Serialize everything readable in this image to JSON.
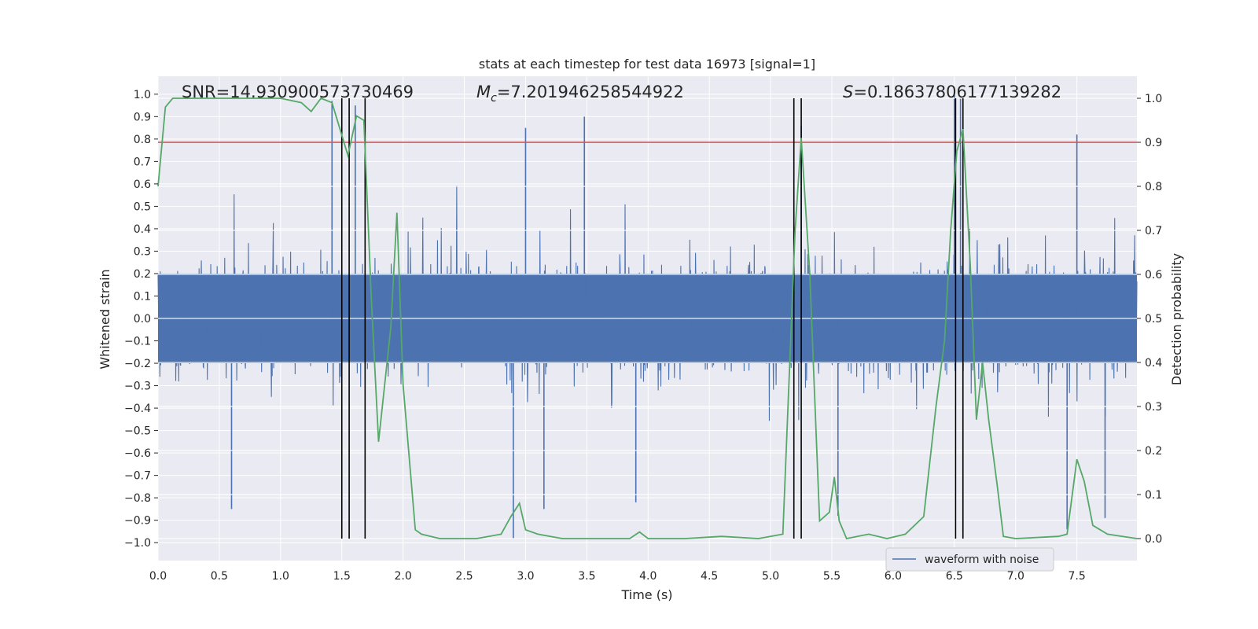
{
  "chart_data": {
    "type": "line",
    "title": "stats at each timestep for test data 16973 [signal=1]",
    "xlabel": "Time (s)",
    "ylabel": "Whitened strain",
    "y2label": "Detection probability",
    "xlim": [
      0.0,
      7.99
    ],
    "ylim": [
      -1.08,
      1.08
    ],
    "y2lim": [
      -0.05,
      1.05
    ],
    "x_ticks": [
      "0.0",
      "0.5",
      "1.0",
      "1.5",
      "2.0",
      "2.5",
      "3.0",
      "3.5",
      "4.0",
      "4.5",
      "5.0",
      "5.5",
      "6.0",
      "6.5",
      "7.0",
      "7.5"
    ],
    "y_ticks": [
      "1.0",
      "0.9",
      "0.8",
      "0.7",
      "0.6",
      "0.5",
      "0.4",
      "0.3",
      "0.2",
      "0.1",
      "0.0",
      "−0.1",
      "−0.2",
      "−0.3",
      "−0.4",
      "−0.5",
      "−0.6",
      "−0.7",
      "−0.8",
      "−0.9",
      "−1.0"
    ],
    "y2_ticks": [
      "1.0",
      "0.9",
      "0.8",
      "0.7",
      "0.6",
      "0.5",
      "0.4",
      "0.3",
      "0.2",
      "0.1",
      "0.0"
    ],
    "annotations": {
      "snr": "SNR=14.930900573730469",
      "mc_symbol": "M",
      "mc_sub": "c",
      "mc_value": "=7.201946258544922",
      "s_symbol": "S",
      "s_value": "=0.18637806177139282"
    },
    "legend": {
      "label": "waveform with noise",
      "position": "lower-right"
    },
    "threshold": {
      "value": 0.9,
      "axis": "y2",
      "color": "#c44e52"
    },
    "vertical_markers": [
      1.5,
      1.56,
      1.69,
      5.19,
      5.25,
      6.51,
      6.57
    ],
    "series": [
      {
        "name": "waveform with noise",
        "axis": "y",
        "color": "#4c72b0",
        "kind": "noise-envelope",
        "duration": 7.99,
        "peaks": [
          {
            "t": 1.42,
            "v": 0.97
          },
          {
            "t": 1.61,
            "v": 0.95
          },
          {
            "t": 3.48,
            "v": 0.9
          },
          {
            "t": 3.0,
            "v": 0.85
          },
          {
            "t": 5.25,
            "v": 0.86
          },
          {
            "t": 6.5,
            "v": 1.0
          },
          {
            "t": 6.55,
            "v": 0.98
          },
          {
            "t": 7.5,
            "v": 0.82
          },
          {
            "t": 2.9,
            "v": -0.98
          },
          {
            "t": 6.57,
            "v": -0.95
          },
          {
            "t": 7.42,
            "v": -0.94
          },
          {
            "t": 0.6,
            "v": -0.85
          },
          {
            "t": 3.15,
            "v": -0.85
          },
          {
            "t": 5.55,
            "v": -0.88
          },
          {
            "t": 7.73,
            "v": -0.89
          },
          {
            "t": 3.9,
            "v": -0.82
          }
        ]
      },
      {
        "name": "detection probability",
        "axis": "y2",
        "color": "#55a868",
        "points": [
          [
            0.0,
            0.8
          ],
          [
            0.06,
            0.98
          ],
          [
            0.12,
            1.0
          ],
          [
            0.5,
            1.0
          ],
          [
            0.75,
            1.0
          ],
          [
            1.0,
            1.0
          ],
          [
            1.17,
            0.99
          ],
          [
            1.25,
            0.97
          ],
          [
            1.33,
            1.0
          ],
          [
            1.42,
            0.99
          ],
          [
            1.55,
            0.87
          ],
          [
            1.62,
            0.96
          ],
          [
            1.68,
            0.95
          ],
          [
            1.74,
            0.55
          ],
          [
            1.8,
            0.22
          ],
          [
            1.9,
            0.48
          ],
          [
            1.95,
            0.74
          ],
          [
            2.0,
            0.35
          ],
          [
            2.1,
            0.02
          ],
          [
            2.15,
            0.01
          ],
          [
            2.3,
            0.0
          ],
          [
            2.6,
            0.0
          ],
          [
            2.8,
            0.01
          ],
          [
            2.88,
            0.05
          ],
          [
            2.95,
            0.08
          ],
          [
            3.0,
            0.02
          ],
          [
            3.1,
            0.01
          ],
          [
            3.3,
            0.0
          ],
          [
            3.7,
            0.0
          ],
          [
            3.85,
            0.0
          ],
          [
            3.93,
            0.015
          ],
          [
            4.0,
            0.0
          ],
          [
            4.3,
            0.0
          ],
          [
            4.6,
            0.005
          ],
          [
            4.9,
            0.0
          ],
          [
            5.1,
            0.01
          ],
          [
            5.2,
            0.7
          ],
          [
            5.25,
            0.91
          ],
          [
            5.32,
            0.6
          ],
          [
            5.4,
            0.04
          ],
          [
            5.48,
            0.06
          ],
          [
            5.52,
            0.14
          ],
          [
            5.56,
            0.04
          ],
          [
            5.62,
            0.0
          ],
          [
            5.8,
            0.01
          ],
          [
            5.95,
            0.0
          ],
          [
            6.1,
            0.01
          ],
          [
            6.25,
            0.05
          ],
          [
            6.35,
            0.3
          ],
          [
            6.42,
            0.45
          ],
          [
            6.47,
            0.7
          ],
          [
            6.52,
            0.88
          ],
          [
            6.57,
            0.93
          ],
          [
            6.63,
            0.62
          ],
          [
            6.68,
            0.27
          ],
          [
            6.73,
            0.4
          ],
          [
            6.78,
            0.27
          ],
          [
            6.85,
            0.12
          ],
          [
            6.9,
            0.005
          ],
          [
            7.0,
            0.0
          ],
          [
            7.35,
            0.005
          ],
          [
            7.42,
            0.01
          ],
          [
            7.5,
            0.18
          ],
          [
            7.56,
            0.13
          ],
          [
            7.63,
            0.03
          ],
          [
            7.75,
            0.01
          ],
          [
            7.99,
            0.0
          ]
        ]
      }
    ]
  }
}
